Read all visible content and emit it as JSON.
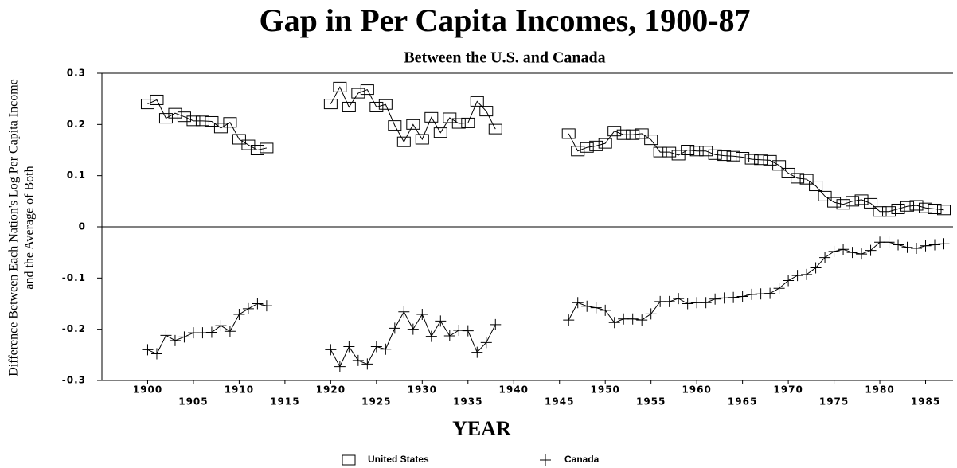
{
  "chart_data": {
    "type": "line",
    "title": "Gap in Per Capita Incomes, 1900-87",
    "subtitle": "Between the U.S. and Canada",
    "xlabel": "YEAR",
    "ylabel": [
      "Difference Between Each Nation's Log Per Capita Income",
      "and the Average of Both"
    ],
    "x": [
      1900,
      1901,
      1902,
      1903,
      1904,
      1905,
      1906,
      1907,
      1908,
      1909,
      1910,
      1911,
      1912,
      1913,
      1914,
      1915,
      1916,
      1917,
      1918,
      1919,
      1920,
      1921,
      1922,
      1923,
      1924,
      1925,
      1926,
      1927,
      1928,
      1929,
      1930,
      1931,
      1932,
      1933,
      1934,
      1935,
      1936,
      1937,
      1938,
      1939,
      1940,
      1941,
      1942,
      1943,
      1944,
      1945,
      1946,
      1947,
      1948,
      1949,
      1950,
      1951,
      1952,
      1953,
      1954,
      1955,
      1956,
      1957,
      1958,
      1959,
      1960,
      1961,
      1962,
      1963,
      1964,
      1965,
      1966,
      1967,
      1968,
      1969,
      1970,
      1971,
      1972,
      1973,
      1974,
      1975,
      1976,
      1977,
      1978,
      1979,
      1980,
      1981,
      1982,
      1983,
      1984,
      1985,
      1986,
      1987
    ],
    "series": [
      {
        "name": "United States",
        "marker": "square",
        "color": "#000000",
        "label_color": "#1a1a5e",
        "values": [
          0.24,
          0.248,
          0.212,
          0.222,
          0.215,
          0.207,
          0.207,
          0.206,
          0.193,
          0.204,
          0.171,
          0.16,
          0.15,
          0.154,
          null,
          null,
          null,
          null,
          null,
          null,
          0.24,
          0.273,
          0.234,
          0.261,
          0.268,
          0.234,
          0.239,
          0.198,
          0.166,
          0.2,
          0.171,
          0.214,
          0.184,
          0.213,
          0.202,
          0.203,
          0.245,
          0.226,
          0.191,
          null,
          null,
          null,
          null,
          null,
          null,
          null,
          0.182,
          0.148,
          0.155,
          0.158,
          0.163,
          0.187,
          0.18,
          0.18,
          0.182,
          0.17,
          0.146,
          0.146,
          0.14,
          0.15,
          0.148,
          0.148,
          0.141,
          0.139,
          0.138,
          0.136,
          0.132,
          0.131,
          0.13,
          0.12,
          0.105,
          0.095,
          0.093,
          0.08,
          0.06,
          0.048,
          0.044,
          0.05,
          0.053,
          0.046,
          0.03,
          0.03,
          0.035,
          0.04,
          0.042,
          0.037,
          0.035,
          0.033
        ]
      },
      {
        "name": "Canada",
        "marker": "plus",
        "color": "#000000",
        "label_color": "#1a4d1a",
        "values": [
          -0.24,
          -0.248,
          -0.212,
          -0.222,
          -0.215,
          -0.207,
          -0.207,
          -0.206,
          -0.193,
          -0.204,
          -0.171,
          -0.16,
          -0.15,
          -0.154,
          null,
          null,
          null,
          null,
          null,
          null,
          -0.24,
          -0.273,
          -0.234,
          -0.261,
          -0.268,
          -0.234,
          -0.239,
          -0.198,
          -0.166,
          -0.2,
          -0.171,
          -0.214,
          -0.184,
          -0.213,
          -0.202,
          -0.203,
          -0.245,
          -0.226,
          -0.191,
          null,
          null,
          null,
          null,
          null,
          null,
          null,
          -0.182,
          -0.148,
          -0.155,
          -0.158,
          -0.163,
          -0.187,
          -0.18,
          -0.18,
          -0.182,
          -0.17,
          -0.146,
          -0.146,
          -0.14,
          -0.15,
          -0.148,
          -0.148,
          -0.141,
          -0.139,
          -0.138,
          -0.136,
          -0.132,
          -0.131,
          -0.13,
          -0.12,
          -0.105,
          -0.095,
          -0.093,
          -0.08,
          -0.06,
          -0.048,
          -0.044,
          -0.05,
          -0.053,
          -0.046,
          -0.03,
          -0.03,
          -0.035,
          -0.04,
          -0.042,
          -0.037,
          -0.035,
          -0.033
        ]
      }
    ],
    "xlim": [
      1895,
      1988
    ],
    "xticks": [
      1900,
      1905,
      1910,
      1915,
      1920,
      1925,
      1930,
      1935,
      1940,
      1945,
      1950,
      1955,
      1960,
      1965,
      1970,
      1975,
      1980,
      1985
    ],
    "ylim": [
      -0.3,
      0.3
    ],
    "yticks": [
      0.3,
      0.2,
      0.1,
      0,
      -0.1,
      -0.2,
      -0.3
    ],
    "grid": false
  }
}
